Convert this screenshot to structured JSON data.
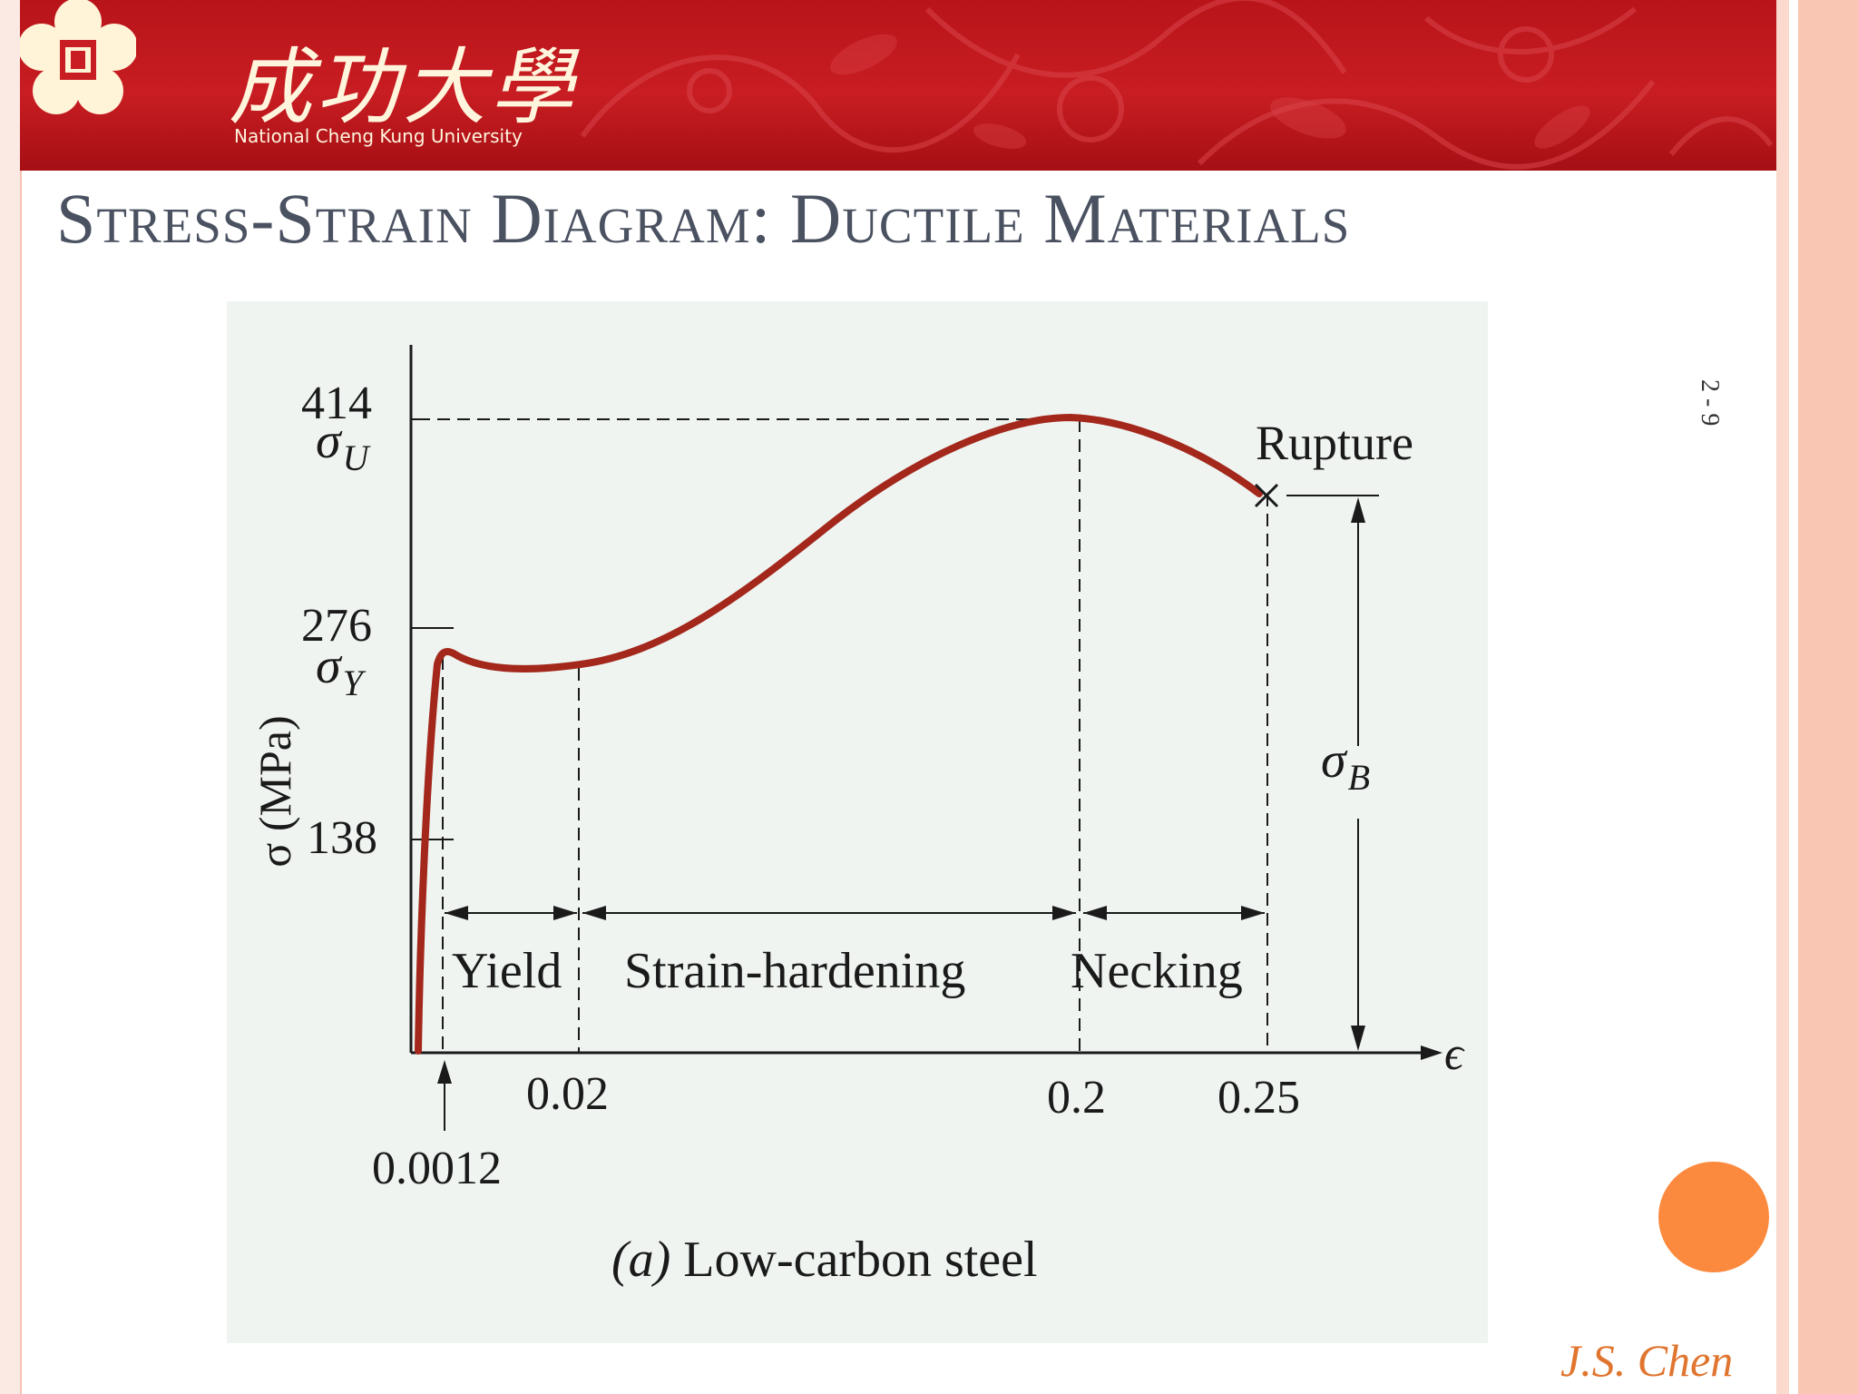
{
  "header": {
    "university_cn": "成功大學",
    "university_en": "National Cheng Kung University",
    "logo_icon": "ncku-plum-blossom-logo-icon"
  },
  "slide": {
    "title": "Stress-Strain Diagram:  Ductile Materials",
    "number": "2 - 9",
    "author": "J.S. Chen"
  },
  "figure": {
    "caption_label": "(a)",
    "caption_text": " Low-carbon steel",
    "y_axis_label": "σ (MPa)",
    "x_axis_label": "ϵ",
    "y_ticks": [
      "414",
      "276",
      "138"
    ],
    "sigma_u": "σ",
    "sigma_u_sub": "U",
    "sigma_y": "σ",
    "sigma_y_sub": "Y",
    "sigma_b": "σ",
    "sigma_b_sub": "B",
    "x_ticks": [
      "0.02",
      "0.2",
      "0.25"
    ],
    "x_tick_small": "0.0012",
    "regions": [
      "Yield",
      "Strain-hardening",
      "Necking"
    ],
    "rupture_label": "Rupture",
    "colors": {
      "curve": "#a3271b",
      "axes": "#1a1a1a",
      "background": "#eff4f1"
    }
  }
}
